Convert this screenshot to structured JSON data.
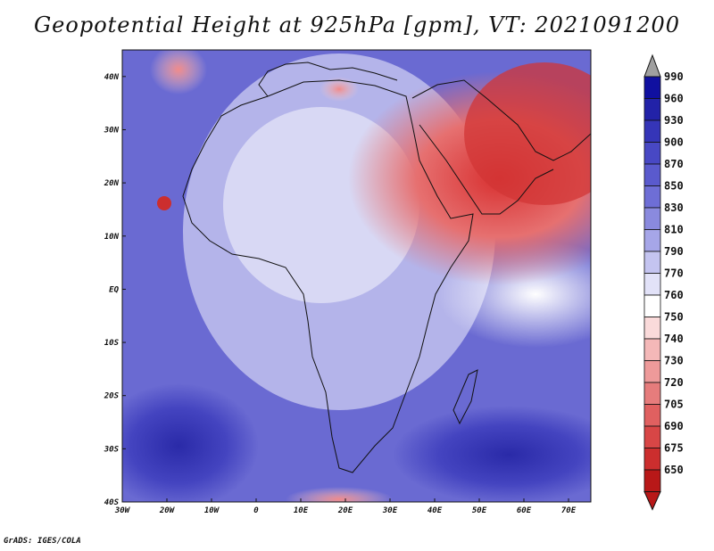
{
  "title": "Geopotential Height at 925hPa [gpm], VT: 2021091200",
  "credit": "GrADS: IGES/COLA",
  "map": {
    "lon_range": [
      -30,
      75
    ],
    "lat_range": [
      -40,
      45
    ],
    "lat_ticks": [
      {
        "value": 40,
        "label": "40N"
      },
      {
        "value": 30,
        "label": "30N"
      },
      {
        "value": 20,
        "label": "20N"
      },
      {
        "value": 10,
        "label": "10N"
      },
      {
        "value": 0,
        "label": "EQ"
      },
      {
        "value": -10,
        "label": "10S"
      },
      {
        "value": -20,
        "label": "20S"
      },
      {
        "value": -30,
        "label": "30S"
      },
      {
        "value": -40,
        "label": "40S"
      }
    ],
    "lon_ticks": [
      {
        "value": -30,
        "label": "30W"
      },
      {
        "value": -20,
        "label": "20W"
      },
      {
        "value": -10,
        "label": "10W"
      },
      {
        "value": 0,
        "label": "0"
      },
      {
        "value": 10,
        "label": "10E"
      },
      {
        "value": 20,
        "label": "20E"
      },
      {
        "value": 30,
        "label": "30E"
      },
      {
        "value": 40,
        "label": "40E"
      },
      {
        "value": 50,
        "label": "50E"
      },
      {
        "value": 60,
        "label": "60E"
      },
      {
        "value": 70,
        "label": "70E"
      }
    ]
  },
  "colorbar": {
    "levels": [
      "990",
      "960",
      "930",
      "900",
      "870",
      "850",
      "830",
      "810",
      "790",
      "770",
      "760",
      "750",
      "740",
      "730",
      "720",
      "705",
      "690",
      "675",
      "650"
    ],
    "colors": [
      "#1010a0",
      "#2222a8",
      "#3535b8",
      "#4848c4",
      "#5a5acd",
      "#6e6ed6",
      "#8a8ade",
      "#a6a6e8",
      "#c4c4f0",
      "#e2e2f8",
      "#ffffff",
      "#fadada",
      "#f4b8b8",
      "#ee9a9a",
      "#e67c7c",
      "#e06060",
      "#d84646",
      "#cc2e2e",
      "#b81818"
    ],
    "top_arrow_color": "#a0a0a0",
    "bottom_arrow_color": "#b81818"
  }
}
